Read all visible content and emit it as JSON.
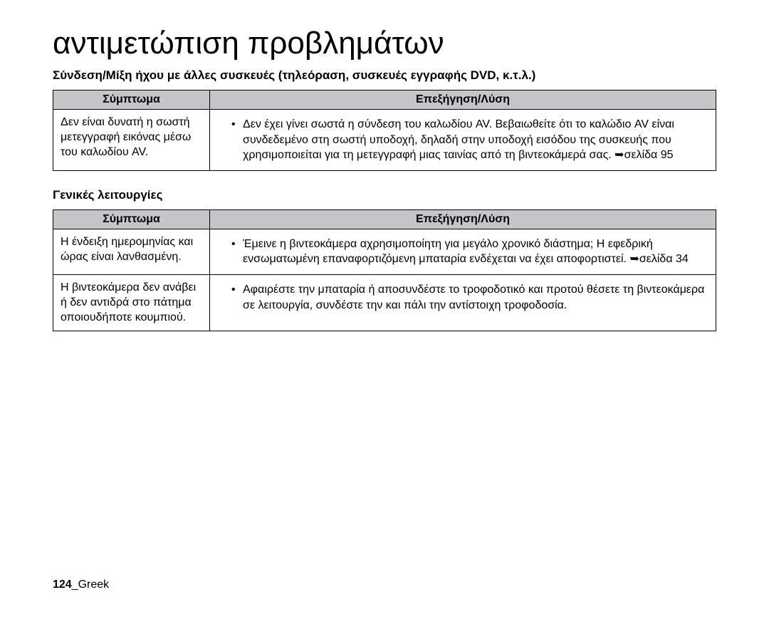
{
  "page": {
    "title": "αντιμετώπιση προβλημάτων",
    "footer_page": "124",
    "footer_sep": "_",
    "footer_lang": "Greek"
  },
  "section1": {
    "heading": "Σύνδεση/Μίξη ήχου με άλλες συσκευές (τηλεόραση, συσκευές εγγραφής DVD, κ.τ.λ.)",
    "col_symptom": "Σύμπτωμα",
    "col_explain": "Επεξήγηση/Λύση",
    "rows": [
      {
        "symptom": "Δεν είναι δυνατή η σωστή μετεγγραφή εικόνας μέσω του καλωδίου AV.",
        "bullets": [
          "Δεν έχει γίνει σωστά η σύνδεση του καλωδίου AV. Βεβαιωθείτε ότι το καλώδιο AV είναι συνδεδεμένο στη σωστή υποδοχή, δηλαδή στην υποδοχή εισόδου της συσκευής που χρησιμοποιείται για τη μετεγγραφή μιας ταινίας από τη βιντεοκάμερά σας. ➥σελίδα 95"
        ]
      }
    ]
  },
  "section2": {
    "heading": "Γενικές λειτουργίες",
    "col_symptom": "Σύμπτωμα",
    "col_explain": "Επεξήγηση/Λύση",
    "rows": [
      {
        "symptom": "Η ένδειξη ημερομηνίας και ώρας είναι λανθασμένη.",
        "bullets": [
          "Έμεινε η βιντεοκάμερα αχρησιμοποίητη για μεγάλο χρονικό διάστημα; Η εφεδρική ενσωματωμένη επαναφορτιζόμενη μπαταρία ενδέχεται να έχει αποφορτιστεί. ➥σελίδα 34"
        ]
      },
      {
        "symptom": "Η βιντεοκάμερα δεν ανάβει ή δεν αντιδρά στο πάτημα οποιουδήποτε κουμπιού.",
        "bullets": [
          "Αφαιρέστε την μπαταρία ή αποσυνδέστε το τροφοδοτικό και προτού θέσετε τη βιντεοκάμερα σε λειτουργία, συνδέστε την και πάλι την αντίστοιχη τροφοδοσία."
        ]
      }
    ]
  }
}
